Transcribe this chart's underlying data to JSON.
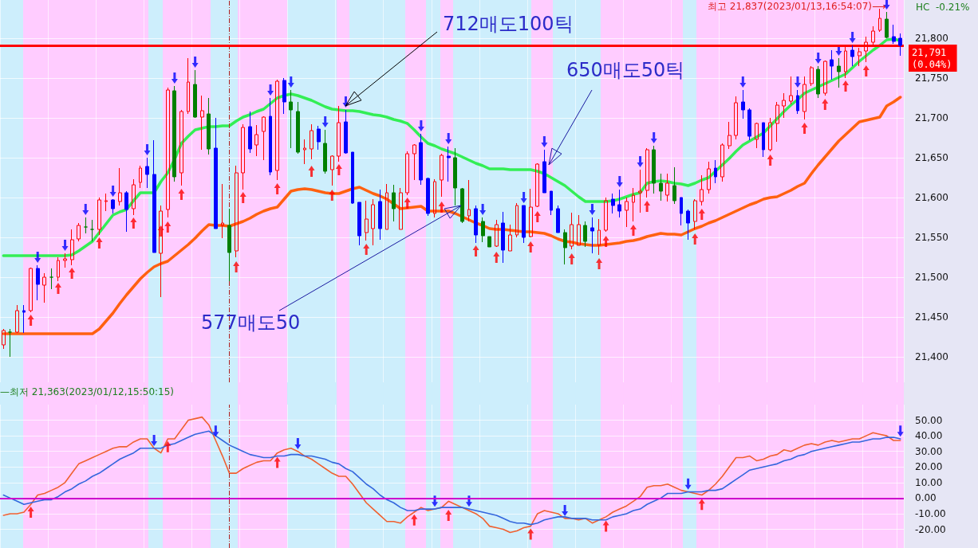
{
  "chart_data": [
    {
      "type": "candlestick",
      "categories": [
        null,
        null,
        null,
        null,
        null,
        null,
        null,
        null,
        null,
        null,
        null,
        null,
        null,
        null,
        null,
        null,
        null,
        null,
        null,
        null,
        null,
        null,
        null,
        null,
        null,
        null,
        null,
        null,
        null,
        null,
        null,
        null,
        null,
        null,
        null,
        null,
        null,
        null,
        null,
        null,
        null,
        null,
        null,
        null,
        null,
        null,
        null,
        null,
        null,
        null,
        null,
        null,
        null,
        null,
        null,
        null,
        null,
        null,
        null,
        null,
        null,
        null,
        null,
        null,
        null,
        null,
        null,
        null,
        null,
        null,
        null,
        null,
        null,
        null,
        null,
        null,
        null,
        null,
        null,
        null,
        null,
        null,
        null,
        null,
        null,
        null,
        null,
        null,
        null,
        null,
        null,
        null,
        null,
        null,
        null,
        null,
        null,
        null,
        null,
        null,
        null,
        null,
        null,
        null,
        null,
        null,
        null,
        null,
        null,
        null,
        null,
        null,
        null,
        null,
        null,
        null,
        null,
        null,
        null,
        null,
        null,
        null,
        null,
        null,
        null,
        null,
        null,
        null,
        null,
        null,
        null,
        null
      ],
      "ohlc": [
        [
          21415,
          21435,
          21410,
          21433
        ],
        [
          21431,
          21435,
          21400,
          21431
        ],
        [
          21431,
          21465,
          21430,
          21458
        ],
        [
          21458,
          21465,
          21430,
          21456
        ],
        [
          21458,
          21512,
          21456,
          21511
        ],
        [
          21511,
          21515,
          21471,
          21491
        ],
        [
          21490,
          21505,
          21468,
          21500
        ],
        [
          21500,
          21511,
          21485,
          21500
        ],
        [
          21500,
          21525,
          21495,
          21521
        ],
        [
          21521,
          21530,
          21512,
          21523
        ],
        [
          21522,
          21560,
          21515,
          21547
        ],
        [
          21548,
          21568,
          21545,
          21565
        ],
        [
          21563,
          21575,
          21555,
          21563
        ],
        [
          21560,
          21572,
          21545,
          21560
        ],
        [
          21560,
          21600,
          21553,
          21597
        ],
        [
          21595,
          21605,
          21583,
          21596
        ],
        [
          21597,
          21598,
          21580,
          21586
        ],
        [
          21595,
          21637,
          21590,
          21606
        ],
        [
          21606,
          21608,
          21557,
          21585
        ],
        [
          21586,
          21623,
          21578,
          21616
        ],
        [
          21619,
          21640,
          21612,
          21637
        ],
        [
          21639,
          21650,
          21612,
          21629
        ],
        [
          21629,
          21672,
          21531,
          21531
        ],
        [
          21530,
          21590,
          21475,
          21583
        ],
        [
          21585,
          21738,
          21575,
          21735
        ],
        [
          21734,
          21740,
          21620,
          21626
        ],
        [
          21631,
          21710,
          21615,
          21708
        ],
        [
          21708,
          21775,
          21705,
          21745
        ],
        [
          21742,
          21760,
          21700,
          21701
        ],
        [
          21701,
          21728,
          21660,
          21709
        ],
        [
          21705,
          21725,
          21654,
          21661
        ],
        [
          21662,
          21700,
          21561,
          21561
        ],
        [
          21565,
          21617,
          21549,
          21568
        ],
        [
          21565,
          21586,
          21495,
          21531
        ],
        [
          21533,
          21640,
          21525,
          21631
        ],
        [
          21631,
          21692,
          21610,
          21688
        ],
        [
          21689,
          21708,
          21656,
          21661
        ],
        [
          21666,
          21691,
          21652,
          21679
        ],
        [
          21683,
          21702,
          21647,
          21701
        ],
        [
          21702,
          21725,
          21628,
          21632
        ],
        [
          21634,
          21748,
          21622,
          21746
        ],
        [
          21747,
          21750,
          21705,
          21720
        ],
        [
          21720,
          21735,
          21662,
          21710
        ],
        [
          21708,
          21720,
          21655,
          21657
        ],
        [
          21660,
          21673,
          21642,
          21662
        ],
        [
          21661,
          21692,
          21648,
          21684
        ],
        [
          21686,
          21690,
          21660,
          21670
        ],
        [
          21668,
          21685,
          21630,
          21633
        ],
        [
          21635,
          21653,
          21615,
          21652
        ],
        [
          21652,
          21715,
          21645,
          21694
        ],
        [
          21695,
          21710,
          21655,
          21656
        ],
        [
          21657,
          21657,
          21592,
          21593
        ],
        [
          21594,
          21594,
          21540,
          21552
        ],
        [
          21556,
          21596,
          21546,
          21573
        ],
        [
          21561,
          21598,
          21540,
          21591
        ],
        [
          21595,
          21610,
          21547,
          21561
        ],
        [
          21560,
          21617,
          21560,
          21606
        ],
        [
          21606,
          21616,
          21570,
          21586
        ],
        [
          21560,
          21612,
          21560,
          21606
        ],
        [
          21606,
          21658,
          21603,
          21655
        ],
        [
          21655,
          21667,
          21622,
          21666
        ],
        [
          21669,
          21680,
          21616,
          21622
        ],
        [
          21624,
          21625,
          21577,
          21580
        ],
        [
          21580,
          21623,
          21575,
          21620
        ],
        [
          21622,
          21655,
          21601,
          21653
        ],
        [
          21652,
          21664,
          21620,
          21650
        ],
        [
          21650,
          21662,
          21590,
          21612
        ],
        [
          21611,
          21612,
          21568,
          21570
        ],
        [
          21577,
          21622,
          21570,
          21585
        ],
        [
          21586,
          21590,
          21543,
          21553
        ],
        [
          21570,
          21575,
          21544,
          21552
        ],
        [
          21551,
          21551,
          21538,
          21538
        ],
        [
          21539,
          21572,
          21538,
          21566
        ],
        [
          21568,
          21582,
          21518,
          21534
        ],
        [
          21533,
          21566,
          21533,
          21553
        ],
        [
          21553,
          21593,
          21550,
          21590
        ],
        [
          21590,
          21590,
          21543,
          21550
        ],
        [
          21551,
          21611,
          21550,
          21588
        ],
        [
          21589,
          21643,
          21588,
          21642
        ],
        [
          21645,
          21660,
          21606,
          21606
        ],
        [
          21608,
          21608,
          21578,
          21584
        ],
        [
          21586,
          21590,
          21556,
          21556
        ],
        [
          21556,
          21560,
          21516,
          21537
        ],
        [
          21539,
          21581,
          21535,
          21566
        ],
        [
          21540,
          21578,
          21540,
          21566
        ],
        [
          21565,
          21570,
          21538,
          21545
        ],
        [
          21562,
          21575,
          21530,
          21558
        ],
        [
          21540,
          21573,
          21528,
          21559
        ],
        [
          21559,
          21600,
          21557,
          21596
        ],
        [
          21598,
          21605,
          21580,
          21590
        ],
        [
          21591,
          21610,
          21575,
          21583
        ],
        [
          21584,
          21600,
          21563,
          21595
        ],
        [
          21594,
          21612,
          21570,
          21603
        ],
        [
          21606,
          21635,
          21581,
          21608
        ],
        [
          21609,
          21662,
          21600,
          21660
        ],
        [
          21660,
          21665,
          21605,
          21618
        ],
        [
          21618,
          21630,
          21596,
          21608
        ],
        [
          21603,
          21630,
          21595,
          21618
        ],
        [
          21615,
          21638,
          21592,
          21596
        ],
        [
          21600,
          21600,
          21565,
          21580
        ],
        [
          21583,
          21585,
          21547,
          21568
        ],
        [
          21570,
          21598,
          21560,
          21596
        ],
        [
          21595,
          21628,
          21590,
          21610
        ],
        [
          21610,
          21645,
          21605,
          21636
        ],
        [
          21637,
          21647,
          21618,
          21626
        ],
        [
          21626,
          21668,
          21620,
          21666
        ],
        [
          21665,
          21695,
          21661,
          21678
        ],
        [
          21678,
          21727,
          21673,
          21719
        ],
        [
          21720,
          21735,
          21699,
          21710
        ],
        [
          21710,
          21712,
          21672,
          21677
        ],
        [
          21673,
          21694,
          21662,
          21693
        ],
        [
          21694,
          21694,
          21651,
          21660
        ],
        [
          21660,
          21700,
          21658,
          21694
        ],
        [
          21693,
          21720,
          21670,
          21716
        ],
        [
          21715,
          21731,
          21700,
          21722
        ],
        [
          21721,
          21752,
          21717,
          21728
        ],
        [
          21728,
          21735,
          21705,
          21709
        ],
        [
          21708,
          21752,
          21698,
          21742
        ],
        [
          21743,
          21765,
          21740,
          21763
        ],
        [
          21761,
          21765,
          21725,
          21730
        ],
        [
          21731,
          21772,
          21728,
          21771
        ],
        [
          21773,
          21785,
          21748,
          21765
        ],
        [
          21765,
          21775,
          21738,
          21758
        ],
        [
          21758,
          21790,
          21750,
          21784
        ],
        [
          21785,
          21791,
          21765,
          21777
        ],
        [
          21778,
          21788,
          21765,
          21783
        ],
        [
          21784,
          21802,
          21770,
          21795
        ],
        [
          21795,
          21815,
          21790,
          21809
        ],
        [
          21810,
          21837,
          21808,
          21825
        ],
        [
          21824,
          21833,
          21800,
          21801
        ],
        [
          21802,
          21817,
          21793,
          21796
        ],
        [
          21800,
          21806,
          21778,
          21791
        ]
      ],
      "colors": [
        "#ff0000",
        "#008000",
        "#ff0000",
        "#0000ff",
        "#ff0000",
        "#0000ff",
        "#ff0000",
        "#008000",
        "#ff0000",
        "#ff0000",
        "#ff0000",
        "#ff0000",
        "#008000",
        "#008000",
        "#ff0000",
        "#ff0000",
        "#0000ff",
        "#ff0000",
        "#0000ff",
        "#ff0000",
        "#ff0000",
        "#0000ff",
        "#0000ff",
        "#ff0000",
        "#ff0000",
        "#008000",
        "#ff0000",
        "#ff0000",
        "#008000",
        "#ff0000",
        "#008000",
        "#0000ff",
        "#ff0000",
        "#008000",
        "#ff0000",
        "#ff0000",
        "#0000ff",
        "#ff0000",
        "#ff0000",
        "#0000ff",
        "#ff0000",
        "#0000ff",
        "#008000",
        "#008000",
        "#ff0000",
        "#ff0000",
        "#0000ff",
        "#008000",
        "#ff0000",
        "#ff0000",
        "#0000ff",
        "#0000ff",
        "#0000ff",
        "#ff0000",
        "#ff0000",
        "#0000ff",
        "#ff0000",
        "#008000",
        "#ff0000",
        "#ff0000",
        "#ff0000",
        "#0000ff",
        "#0000ff",
        "#ff0000",
        "#ff0000",
        "#0000ff",
        "#008000",
        "#008000",
        "#ff0000",
        "#0000ff",
        "#008000",
        "#008000",
        "#ff0000",
        "#0000ff",
        "#ff0000",
        "#ff0000",
        "#0000ff",
        "#ff0000",
        "#ff0000",
        "#0000ff",
        "#0000ff",
        "#0000ff",
        "#008000",
        "#ff0000",
        "#ff0000",
        "#008000",
        "#0000ff",
        "#ff0000",
        "#ff0000",
        "#0000ff",
        "#0000ff",
        "#ff0000",
        "#ff0000",
        "#ff0000",
        "#ff0000",
        "#008000",
        "#008000",
        "#ff0000",
        "#008000",
        "#0000ff",
        "#0000ff",
        "#ff0000",
        "#ff0000",
        "#ff0000",
        "#0000ff",
        "#ff0000",
        "#ff0000",
        "#ff0000",
        "#0000ff",
        "#0000ff",
        "#ff0000",
        "#0000ff",
        "#ff0000",
        "#ff0000",
        "#ff0000",
        "#ff0000",
        "#0000ff",
        "#ff0000",
        "#ff0000",
        "#008000",
        "#ff0000",
        "#0000ff",
        "#008000",
        "#ff0000",
        "#0000ff",
        "#ff0000",
        "#ff0000",
        "#ff0000",
        "#ff0000",
        "#008000",
        "#0000ff",
        "#0000ff"
      ],
      "series": [
        {
          "type": "line",
          "color": "#33ee55",
          "values": [
            21527,
            21527,
            21527,
            21527,
            21527,
            21527,
            21527,
            21527,
            21527,
            21527,
            21528,
            21533,
            21539,
            21545,
            21556,
            21567,
            21578,
            21582,
            21585,
            21596,
            21606,
            21606,
            21606,
            21620,
            21631,
            21648,
            21668,
            21677,
            21685,
            21687,
            21689,
            21689,
            21690,
            21690,
            21696,
            21701,
            21704,
            21708,
            21711,
            21718,
            21725,
            21728,
            21730,
            21728,
            21725,
            21722,
            21718,
            21714,
            21711,
            21710,
            21709,
            21709,
            21708,
            21706,
            21704,
            21703,
            21701,
            21698,
            21696,
            21693,
            21685,
            21676,
            21668,
            21665,
            21661,
            21658,
            21655,
            21651,
            21647,
            21643,
            21640,
            21636,
            21636,
            21636,
            21635,
            21635,
            21635,
            21635,
            21633,
            21630,
            21625,
            21620,
            21615,
            21608,
            21601,
            21595,
            21595,
            21595,
            21595,
            21596,
            21598,
            21601,
            21604,
            21606,
            21618,
            21620,
            21621,
            21620,
            21618,
            21617,
            21615,
            21618,
            21622,
            21625,
            21633,
            21641,
            21649,
            21658,
            21666,
            21671,
            21676,
            21681,
            21690,
            21699,
            21708,
            21716,
            21723,
            21731,
            21735,
            21739,
            21743,
            21747,
            21751,
            21755,
            21763,
            21771,
            21778,
            21785,
            21791,
            21798,
            21799,
            21797
          ]
        },
        {
          "type": "line",
          "color": "#ff6010",
          "values": [
            21429,
            21429,
            21429,
            21429,
            21429,
            21429,
            21429,
            21429,
            21429,
            21429,
            21429,
            21429,
            21429,
            21429,
            21435,
            21445,
            21455,
            21467,
            21478,
            21488,
            21498,
            21506,
            21513,
            21517,
            21520,
            21527,
            21534,
            21541,
            21549,
            21558,
            21566,
            21565,
            21565,
            21564,
            21567,
            21570,
            21574,
            21579,
            21583,
            21586,
            21588,
            21598,
            21608,
            21610,
            21611,
            21610,
            21608,
            21606,
            21605,
            21605,
            21608,
            21611,
            21613,
            21609,
            21605,
            21602,
            21598,
            21592,
            21586,
            21587,
            21588,
            21589,
            21583,
            21583,
            21583,
            21583,
            21580,
            21576,
            21572,
            21568,
            21565,
            21561,
            21560,
            21560,
            21559,
            21558,
            21557,
            21557,
            21556,
            21555,
            21552,
            21548,
            21545,
            21544,
            21542,
            21541,
            21540,
            21540,
            21541,
            21542,
            21543,
            21545,
            21546,
            21548,
            21551,
            21553,
            21555,
            21554,
            21554,
            21553,
            21557,
            21561,
            21564,
            21568,
            21571,
            21575,
            21579,
            21583,
            21587,
            21591,
            21594,
            21598,
            21600,
            21601,
            21605,
            21609,
            21614,
            21618,
            21630,
            21641,
            21651,
            21661,
            21671,
            21679,
            21687,
            21695,
            21697,
            21699,
            21701,
            21715,
            21720,
            21726
          ]
        },
        {
          "type": "scatter",
          "color": "#0000ff",
          "values": [
            null,
            null,
            null,
            null,
            null,
            21525,
            null,
            null,
            null,
            21540,
            null,
            null,
            21585,
            null,
            null,
            null,
            21608,
            null,
            null,
            null,
            null,
            21660,
            null,
            null,
            null,
            21750,
            null,
            null,
            21770,
            null,
            null,
            null,
            null,
            null,
            null,
            null,
            null,
            null,
            null,
            21735,
            null,
            null,
            21745,
            null,
            null,
            null,
            null,
            21695,
            null,
            null,
            21720,
            null,
            null,
            null,
            null,
            null,
            null,
            null,
            null,
            null,
            null,
            21690,
            null,
            null,
            null,
            21674,
            null,
            null,
            null,
            null,
            21585,
            null,
            null,
            null,
            null,
            null,
            21600,
            null,
            null,
            21670,
            null,
            null,
            null,
            null,
            null,
            null,
            21585,
            null,
            null,
            null,
            21620,
            null,
            null,
            21645,
            null,
            21675,
            null,
            null,
            null,
            null,
            null,
            null,
            null,
            null,
            null,
            null,
            null,
            null,
            21745,
            null,
            null,
            null,
            null,
            null,
            null,
            null,
            21745,
            null,
            null,
            21775,
            null,
            null,
            21785,
            null,
            21801,
            null,
            null,
            null,
            null,
            21843,
            null,
            null
          ]
        },
        {
          "type": "scatter",
          "color": "#ff0000",
          "values": [
            null,
            null,
            null,
            null,
            21446,
            null,
            null,
            null,
            21486,
            null,
            21505,
            null,
            null,
            null,
            21543,
            null,
            null,
            null,
            null,
            21568,
            null,
            null,
            null,
            21558,
            21563,
            null,
            21604,
            null,
            null,
            null,
            null,
            null,
            null,
            null,
            21513,
            21600,
            null,
            null,
            null,
            null,
            21611,
            null,
            null,
            null,
            null,
            21633,
            null,
            null,
            21603,
            21635,
            null,
            null,
            null,
            21535,
            null,
            null,
            null,
            null,
            null,
            21593,
            null,
            null,
            null,
            null,
            21588,
            null,
            null,
            null,
            null,
            21533,
            null,
            null,
            21525,
            null,
            null,
            null,
            null,
            21538,
            21576,
            null,
            null,
            null,
            null,
            21523,
            null,
            null,
            null,
            21517,
            21545,
            null,
            null,
            null,
            21559,
            null,
            21589,
            null,
            null,
            null,
            null,
            null,
            null,
            21548,
            21579,
            null,
            null,
            null,
            null,
            null,
            null,
            null,
            null,
            null,
            21647,
            null,
            null,
            null,
            null,
            21687,
            null,
            null,
            21717,
            null,
            null,
            21740,
            null,
            null,
            21759,
            null,
            null,
            null,
            null,
            null
          ]
        }
      ],
      "ylim": [
        21368,
        21848
      ],
      "yticks": [
        {
          "value": 21400,
          "label": "21,400"
        },
        {
          "value": 21450,
          "label": "21,450"
        },
        {
          "value": 21500,
          "label": "21,500"
        },
        {
          "value": 21550,
          "label": "21,550"
        },
        {
          "value": 21600,
          "label": "21,600"
        },
        {
          "value": 21650,
          "label": "21,650"
        },
        {
          "value": 21700,
          "label": "21,700"
        },
        {
          "value": 21750,
          "label": "21,750"
        },
        {
          "value": 21800,
          "label": "21,800"
        }
      ],
      "ref_lines": [
        {
          "axis": "y",
          "value": 21791,
          "label": "21,791\n(0.04%)",
          "color": "#ff0000"
        }
      ],
      "annotations": [
        "712매도100틱",
        "650매도50틱",
        "577매도50",
        "최고 21,837(2023/01/13,16:54:07)⟶",
        "—최저 21,363(2023/01/12,15:50:15)",
        "HC  -0.21%"
      ],
      "grid": true,
      "tick_labels": "y"
    },
    {
      "type": "line",
      "categories": [
        null,
        null,
        null,
        null,
        null,
        null,
        null,
        null,
        null,
        null,
        null,
        null,
        null,
        null,
        null,
        null,
        null,
        null,
        null,
        null,
        null,
        null,
        null,
        null,
        null,
        null,
        null,
        null,
        null,
        null,
        null,
        null,
        null,
        null,
        null,
        null,
        null,
        null,
        null,
        null,
        null,
        null,
        null,
        null,
        null,
        null,
        null,
        null,
        null,
        null,
        null,
        null,
        null,
        null,
        null,
        null,
        null,
        null,
        null,
        null,
        null,
        null,
        null,
        null,
        null,
        null,
        null,
        null,
        null,
        null,
        null,
        null,
        null,
        null,
        null,
        null,
        null,
        null,
        null,
        null,
        null,
        null,
        null,
        null,
        null,
        null,
        null,
        null,
        null,
        null,
        null,
        null,
        null,
        null,
        null,
        null,
        null,
        null,
        null,
        null,
        null,
        null,
        null,
        null,
        null,
        null,
        null,
        null,
        null,
        null,
        null,
        null,
        null,
        null,
        null,
        null,
        null,
        null,
        null,
        null,
        null,
        null,
        null,
        null,
        null,
        null,
        null,
        null,
        null,
        null,
        null,
        null
      ],
      "series": [
        {
          "color": "#f06030",
          "values": [
            -11,
            -10,
            -10,
            -9,
            -4,
            2,
            3,
            5,
            7,
            10,
            16,
            22,
            24,
            26,
            28,
            30,
            32,
            33,
            33,
            36,
            38,
            38,
            32,
            29,
            38,
            38,
            44,
            50,
            51,
            52,
            47,
            37,
            27,
            16,
            16,
            19,
            21,
            23,
            24,
            24,
            29,
            31,
            32,
            30,
            27,
            25,
            22,
            19,
            16,
            14,
            14,
            9,
            3,
            -3,
            -7,
            -11,
            -15,
            -15,
            -16,
            -12,
            -9,
            -6,
            -8,
            -7,
            -6,
            -2,
            -4,
            -6,
            -8,
            -10,
            -13,
            -18,
            -19,
            -20,
            -22,
            -21,
            -19,
            -18,
            -10,
            -8,
            -9,
            -10,
            -13,
            -13,
            -14,
            -13,
            -16,
            -14,
            -12,
            -9,
            -7,
            -5,
            -2,
            1,
            7,
            8,
            8,
            9,
            7,
            5,
            4,
            3,
            2,
            5,
            9,
            14,
            20,
            26,
            26,
            27,
            24,
            25,
            27,
            28,
            31,
            30,
            32,
            34,
            35,
            34,
            36,
            37,
            36,
            37,
            38,
            38,
            40,
            42,
            41,
            40,
            37,
            37
          ]
        },
        {
          "color": "#3366dd",
          "values": [
            2,
            0,
            -2,
            -4,
            -3,
            -2,
            -1,
            -1,
            1,
            4,
            6,
            9,
            11,
            14,
            16,
            19,
            22,
            25,
            27,
            29,
            32,
            32,
            32,
            32,
            34,
            35,
            37,
            39,
            41,
            42,
            43,
            40,
            37,
            34,
            32,
            30,
            28,
            27,
            26,
            26,
            27,
            27,
            28,
            28,
            27,
            27,
            26,
            25,
            23,
            22,
            19,
            17,
            13,
            9,
            6,
            2,
            -1,
            -3,
            -6,
            -8,
            -8,
            -7,
            -7,
            -7,
            -6,
            -6,
            -6,
            -6,
            -7,
            -8,
            -9,
            -10,
            -11,
            -13,
            -15,
            -16,
            -16,
            -17,
            -16,
            -14,
            -13,
            -12,
            -12,
            -13,
            -13,
            -13,
            -14,
            -14,
            -14,
            -12,
            -11,
            -10,
            -8,
            -7,
            -4,
            -2,
            0,
            3,
            3,
            3,
            4,
            4,
            4,
            5,
            5,
            6,
            9,
            12,
            15,
            18,
            19,
            20,
            21,
            22,
            24,
            25,
            27,
            28,
            30,
            31,
            32,
            33,
            34,
            35,
            36,
            36,
            37,
            38,
            38,
            39,
            39,
            38
          ]
        },
        {
          "type": "scatter",
          "color": "#ff0000",
          "values": [
            null,
            null,
            null,
            null,
            -9,
            null,
            null,
            null,
            null,
            null,
            null,
            null,
            null,
            null,
            null,
            null,
            null,
            null,
            null,
            null,
            null,
            null,
            null,
            null,
            33,
            null,
            null,
            null,
            null,
            null,
            null,
            null,
            null,
            null,
            null,
            null,
            null,
            null,
            null,
            null,
            23,
            null,
            null,
            null,
            null,
            null,
            null,
            null,
            null,
            null,
            null,
            null,
            null,
            null,
            null,
            null,
            null,
            null,
            null,
            null,
            -14,
            null,
            null,
            null,
            null,
            -11,
            null,
            null,
            null,
            null,
            null,
            null,
            null,
            null,
            null,
            null,
            null,
            -23,
            null,
            null,
            null,
            null,
            null,
            null,
            null,
            null,
            null,
            null,
            -18,
            null,
            null,
            null,
            null,
            null,
            null,
            null,
            null,
            null,
            null,
            null,
            null,
            null,
            -4,
            null,
            null,
            null,
            null,
            null,
            null,
            null,
            null,
            null,
            null,
            null,
            null,
            null,
            null,
            null,
            null,
            null,
            null,
            null,
            null,
            null,
            null,
            null,
            null,
            null,
            null,
            null,
            null,
            null
          ]
        },
        {
          "type": "scatter",
          "color": "#0000ff",
          "values": [
            null,
            null,
            null,
            null,
            null,
            null,
            null,
            null,
            null,
            null,
            null,
            null,
            null,
            null,
            null,
            null,
            null,
            null,
            null,
            null,
            null,
            null,
            37,
            null,
            null,
            null,
            null,
            null,
            null,
            null,
            null,
            43,
            null,
            null,
            null,
            null,
            null,
            null,
            null,
            null,
            null,
            null,
            null,
            35,
            null,
            null,
            null,
            null,
            null,
            null,
            null,
            null,
            null,
            null,
            null,
            null,
            null,
            null,
            null,
            null,
            null,
            null,
            null,
            -2,
            null,
            null,
            null,
            null,
            -2,
            null,
            null,
            null,
            null,
            null,
            null,
            null,
            null,
            null,
            null,
            null,
            null,
            null,
            -8,
            null,
            null,
            null,
            null,
            null,
            null,
            null,
            null,
            null,
            null,
            null,
            null,
            null,
            null,
            null,
            null,
            null,
            9,
            null,
            null,
            null,
            null,
            null,
            null,
            null,
            null,
            null,
            null,
            null,
            null,
            null,
            null,
            null,
            null,
            null,
            null,
            null,
            null,
            null,
            null,
            null,
            null,
            null,
            null,
            null,
            null,
            null,
            null,
            43
          ]
        }
      ],
      "ylim": [
        -32,
        60
      ],
      "yticks": [
        {
          "value": -20,
          "label": "-20.00"
        },
        {
          "value": -10,
          "label": "-10.00"
        },
        {
          "value": 0,
          "label": "0.00"
        },
        {
          "value": 10,
          "label": "10.00"
        },
        {
          "value": 20,
          "label": "20.00"
        },
        {
          "value": 30,
          "label": "30.00"
        },
        {
          "value": 40,
          "label": "40.00"
        },
        {
          "value": 50,
          "label": "50.00"
        }
      ],
      "ref_lines": [
        {
          "axis": "y",
          "value": 0,
          "color": "#cc00cc"
        }
      ],
      "grid": true,
      "tick_labels": "y"
    }
  ]
}
